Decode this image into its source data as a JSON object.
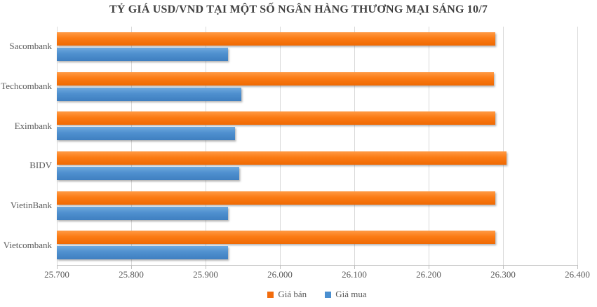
{
  "title": "TỶ GIÁ USD/VND TẠI MỘT SỐ NGÂN HÀNG THƯƠNG MẠI SÁNG 10/7",
  "colors": {
    "sell_bar": "#f47208",
    "buy_bar": "#4a8fd0",
    "gridline": "#d9d9d9",
    "axis_line": "#bfbfbf",
    "title_text": "#3f3f3f",
    "label_text": "#595959"
  },
  "legend": [
    {
      "label": "Giá bán",
      "color": "#f26c0d",
      "series_key": "sell"
    },
    {
      "label": "Giá mua",
      "color": "#4a8fd0",
      "series_key": "buy"
    }
  ],
  "chart_data": {
    "type": "bar",
    "orientation": "horizontal",
    "title": "TỶ GIÁ USD/VND TẠI MỘT SỐ NGÂN HÀNG THƯƠNG MẠI SÁNG 10/7",
    "categories": [
      "Sacombank",
      "Techcombank",
      "Eximbank",
      "BIDV",
      "VietinBank",
      "Vietcombank"
    ],
    "series": [
      {
        "name": "Giá bán",
        "key": "sell",
        "color": "#f26c0d",
        "values": [
          26290,
          26288,
          26290,
          26305,
          26290,
          26290
        ]
      },
      {
        "name": "Giá mua",
        "key": "buy",
        "color": "#4a8fd0",
        "values": [
          25930,
          25948,
          25940,
          25945,
          25930,
          25930
        ]
      }
    ],
    "xlim": [
      25700,
      26400
    ],
    "x_tick_values": [
      25700,
      25800,
      25900,
      26000,
      26100,
      26200,
      26300,
      26400
    ],
    "x_tick_labels": [
      "25.700",
      "25.800",
      "25.900",
      "26.000",
      "26.100",
      "26.200",
      "26.300",
      "26.400"
    ],
    "grid": true,
    "legend_position": "bottom"
  }
}
